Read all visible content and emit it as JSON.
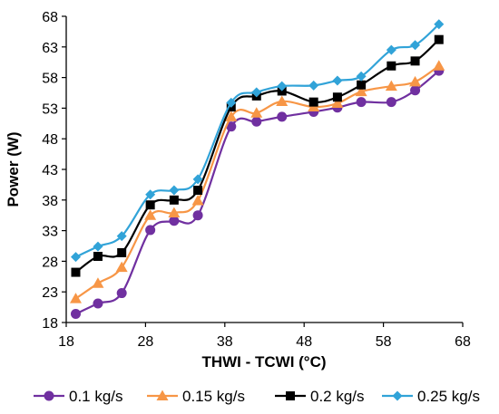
{
  "chart_data": {
    "type": "line",
    "title": "",
    "xlabel": "THWI - TCWI (°C)",
    "ylabel": "Power (W)",
    "xlim": [
      18,
      68
    ],
    "ylim": [
      18,
      68
    ],
    "xticks": [
      "18",
      "28",
      "38",
      "48",
      "58",
      "68"
    ],
    "yticks": [
      "18",
      "23",
      "28",
      "33",
      "38",
      "43",
      "48",
      "53",
      "58",
      "63",
      "68"
    ],
    "grid": false,
    "legend_position": "bottom",
    "series": [
      {
        "name": "0.1 kg/s",
        "color": "#7030A0",
        "marker": "circle",
        "points": [
          [
            19.2,
            19.4
          ],
          [
            22,
            21.1
          ],
          [
            25,
            22.8
          ],
          [
            28.6,
            33.1
          ],
          [
            31.6,
            34.6
          ],
          [
            34.6,
            35.5
          ],
          [
            38.8,
            50
          ],
          [
            42,
            50.8
          ],
          [
            45.2,
            51.6
          ],
          [
            49.2,
            52.4
          ],
          [
            52.2,
            53.1
          ],
          [
            55.2,
            54
          ],
          [
            59,
            54
          ],
          [
            62,
            55.9
          ],
          [
            65,
            59.1
          ]
        ]
      },
      {
        "name": "0.15 kg/s",
        "color": "#F79646",
        "marker": "triangle",
        "points": [
          [
            19.2,
            21.9
          ],
          [
            22,
            24.4
          ],
          [
            25,
            27
          ],
          [
            28.6,
            35.5
          ],
          [
            31.6,
            35.9
          ],
          [
            34.6,
            37.9
          ],
          [
            38.8,
            51.6
          ],
          [
            42,
            52.2
          ],
          [
            45.2,
            54.1
          ],
          [
            49.2,
            53.2
          ],
          [
            52.2,
            53.8
          ],
          [
            55.2,
            55.7
          ],
          [
            59,
            56.6
          ],
          [
            62,
            57.3
          ],
          [
            65,
            59.9
          ]
        ]
      },
      {
        "name": "0.2 kg/s",
        "color": "#000000",
        "marker": "square",
        "points": [
          [
            19.2,
            26.2
          ],
          [
            22,
            28.8
          ],
          [
            25,
            29.4
          ],
          [
            28.6,
            37.2
          ],
          [
            31.6,
            38
          ],
          [
            34.6,
            39.6
          ],
          [
            38.8,
            53.2
          ],
          [
            42,
            55
          ],
          [
            45.2,
            55.8
          ],
          [
            49.2,
            54
          ],
          [
            52.2,
            54.8
          ],
          [
            55.2,
            56.8
          ],
          [
            59,
            59.9
          ],
          [
            62,
            60.7
          ],
          [
            65,
            64.2
          ]
        ]
      },
      {
        "name": "0.25 kg/s",
        "color": "#31A3D8",
        "marker": "diamond",
        "points": [
          [
            19.2,
            28.7
          ],
          [
            22,
            30.4
          ],
          [
            25,
            32.1
          ],
          [
            28.6,
            38.9
          ],
          [
            31.6,
            39.6
          ],
          [
            34.6,
            41.4
          ],
          [
            38.8,
            53.9
          ],
          [
            42,
            55.6
          ],
          [
            45.2,
            56.6
          ],
          [
            49.2,
            56.7
          ],
          [
            52.2,
            57.5
          ],
          [
            55.2,
            58.2
          ],
          [
            59,
            62.5
          ],
          [
            62,
            63.3
          ],
          [
            65,
            66.7
          ]
        ]
      }
    ]
  }
}
